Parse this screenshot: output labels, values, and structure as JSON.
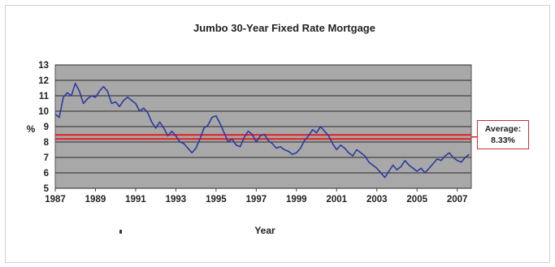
{
  "chart_data": {
    "type": "line",
    "title": "Jumbo 30-Year Fixed Rate Mortgage",
    "xlabel": "Year",
    "ylabel": "%",
    "xlim": [
      1987,
      2007.7
    ],
    "ylim": [
      5,
      13
    ],
    "x_ticks": [
      "1987",
      "1989",
      "1991",
      "1993",
      "1995",
      "1997",
      "1999",
      "2001",
      "2003",
      "2005",
      "2007"
    ],
    "y_ticks": [
      "5",
      "6",
      "7",
      "8",
      "9",
      "10",
      "11",
      "12",
      "13"
    ],
    "grid": true,
    "series": [
      {
        "values": [
          [
            1987.0,
            9.8
          ],
          [
            1987.2,
            9.6
          ],
          [
            1987.4,
            10.9
          ],
          [
            1987.6,
            11.2
          ],
          [
            1987.8,
            11.0
          ],
          [
            1988.0,
            11.8
          ],
          [
            1988.2,
            11.3
          ],
          [
            1988.4,
            10.5
          ],
          [
            1988.6,
            10.8
          ],
          [
            1988.8,
            11.0
          ],
          [
            1989.0,
            10.9
          ],
          [
            1989.2,
            11.3
          ],
          [
            1989.4,
            11.6
          ],
          [
            1989.6,
            11.3
          ],
          [
            1989.8,
            10.5
          ],
          [
            1990.0,
            10.6
          ],
          [
            1990.2,
            10.3
          ],
          [
            1990.4,
            10.7
          ],
          [
            1990.6,
            10.9
          ],
          [
            1990.8,
            10.7
          ],
          [
            1991.0,
            10.5
          ],
          [
            1991.2,
            10.0
          ],
          [
            1991.4,
            10.2
          ],
          [
            1991.6,
            9.9
          ],
          [
            1991.8,
            9.3
          ],
          [
            1992.0,
            8.9
          ],
          [
            1992.2,
            9.3
          ],
          [
            1992.4,
            8.9
          ],
          [
            1992.6,
            8.4
          ],
          [
            1992.8,
            8.7
          ],
          [
            1993.0,
            8.4
          ],
          [
            1993.2,
            8.0
          ],
          [
            1993.4,
            7.9
          ],
          [
            1993.6,
            7.6
          ],
          [
            1993.8,
            7.3
          ],
          [
            1994.0,
            7.6
          ],
          [
            1994.2,
            8.2
          ],
          [
            1994.4,
            8.9
          ],
          [
            1994.6,
            9.1
          ],
          [
            1994.8,
            9.6
          ],
          [
            1995.0,
            9.7
          ],
          [
            1995.2,
            9.2
          ],
          [
            1995.4,
            8.6
          ],
          [
            1995.6,
            8.0
          ],
          [
            1995.8,
            8.2
          ],
          [
            1996.0,
            7.8
          ],
          [
            1996.2,
            7.7
          ],
          [
            1996.4,
            8.3
          ],
          [
            1996.6,
            8.7
          ],
          [
            1996.8,
            8.5
          ],
          [
            1997.0,
            8.0
          ],
          [
            1997.2,
            8.4
          ],
          [
            1997.4,
            8.5
          ],
          [
            1997.6,
            8.1
          ],
          [
            1997.8,
            7.9
          ],
          [
            1998.0,
            7.6
          ],
          [
            1998.2,
            7.7
          ],
          [
            1998.4,
            7.5
          ],
          [
            1998.6,
            7.4
          ],
          [
            1998.8,
            7.2
          ],
          [
            1999.0,
            7.3
          ],
          [
            1999.2,
            7.6
          ],
          [
            1999.4,
            8.1
          ],
          [
            1999.6,
            8.4
          ],
          [
            1999.8,
            8.8
          ],
          [
            2000.0,
            8.6
          ],
          [
            2000.2,
            9.0
          ],
          [
            2000.4,
            8.7
          ],
          [
            2000.6,
            8.4
          ],
          [
            2000.8,
            7.9
          ],
          [
            2001.0,
            7.5
          ],
          [
            2001.2,
            7.8
          ],
          [
            2001.4,
            7.6
          ],
          [
            2001.6,
            7.3
          ],
          [
            2001.8,
            7.1
          ],
          [
            2002.0,
            7.5
          ],
          [
            2002.2,
            7.3
          ],
          [
            2002.4,
            7.1
          ],
          [
            2002.6,
            6.7
          ],
          [
            2002.8,
            6.5
          ],
          [
            2003.0,
            6.3
          ],
          [
            2003.2,
            6.0
          ],
          [
            2003.4,
            5.7
          ],
          [
            2003.6,
            6.1
          ],
          [
            2003.8,
            6.5
          ],
          [
            2004.0,
            6.2
          ],
          [
            2004.2,
            6.4
          ],
          [
            2004.4,
            6.8
          ],
          [
            2004.6,
            6.5
          ],
          [
            2004.8,
            6.3
          ],
          [
            2005.0,
            6.1
          ],
          [
            2005.2,
            6.3
          ],
          [
            2005.4,
            6.0
          ],
          [
            2005.6,
            6.3
          ],
          [
            2005.8,
            6.6
          ],
          [
            2006.0,
            6.9
          ],
          [
            2006.2,
            6.8
          ],
          [
            2006.4,
            7.1
          ],
          [
            2006.6,
            7.3
          ],
          [
            2006.8,
            7.0
          ],
          [
            2007.0,
            6.8
          ],
          [
            2007.2,
            6.7
          ],
          [
            2007.4,
            7.0
          ],
          [
            2007.6,
            7.2
          ]
        ]
      }
    ],
    "reference_line": {
      "label": "Average:",
      "value_label": "8.33%",
      "value": 8.33
    },
    "colors": {
      "plot_bg": "#a8a8a8",
      "gridline": "#2a2a2a",
      "series": "#2b3aa0",
      "average_line": "#e0201f"
    }
  }
}
